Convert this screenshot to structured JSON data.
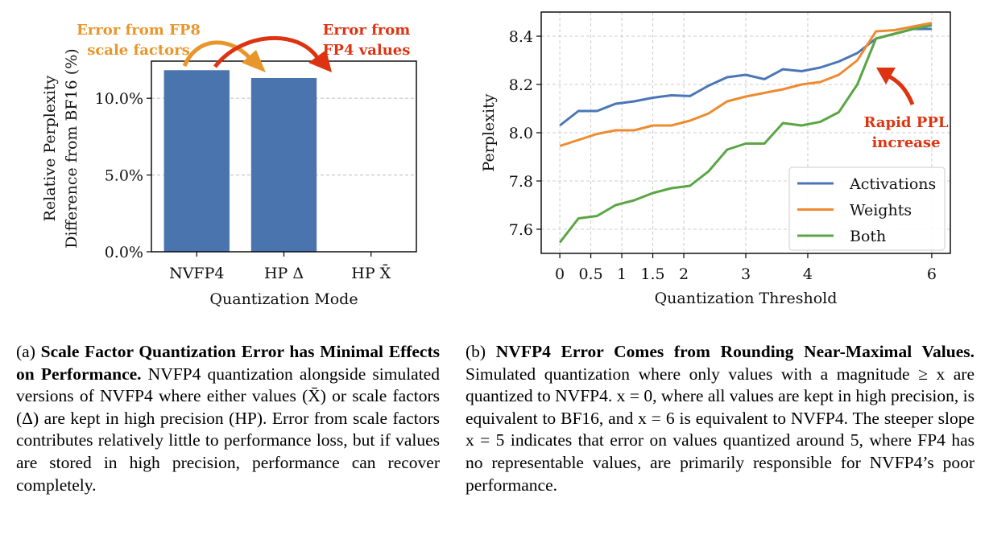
{
  "chart_data": [
    {
      "type": "bar",
      "categories": [
        "NVFP4",
        "HP Δ",
        "HP X̄"
      ],
      "values": [
        11.83,
        11.32,
        0.0
      ],
      "xlabel": "Quantization Mode",
      "ylabel": [
        "Relative Perplexity",
        "Difference from BF16 (%)"
      ],
      "ylim": [
        0,
        12.42
      ],
      "yticks": [
        0,
        5,
        10
      ],
      "ytick_labels": [
        "0.0%",
        "5.0%",
        "10.0%"
      ],
      "grid": "y-dashed",
      "bar_color": "#4a74ad",
      "annotations": [
        {
          "text": [
            "Error from FP8",
            "scale factors"
          ],
          "color": "#e8962a"
        },
        {
          "text": [
            "Error from",
            "FP4 values"
          ],
          "color": "#dd3311"
        }
      ]
    },
    {
      "type": "line",
      "x": [
        0,
        0.3,
        0.6,
        0.9,
        1.2,
        1.5,
        1.8,
        2.1,
        2.4,
        2.7,
        3.0,
        3.3,
        3.6,
        3.9,
        4.2,
        4.5,
        4.8,
        5.1,
        5.4,
        5.7,
        6.0
      ],
      "series": [
        {
          "name": "Activations",
          "color": "#4a76b8",
          "values": [
            8.03,
            8.09,
            8.09,
            8.12,
            8.13,
            8.145,
            8.155,
            8.152,
            8.195,
            8.23,
            8.24,
            8.222,
            8.263,
            8.255,
            8.27,
            8.295,
            8.33,
            8.39,
            8.41,
            8.43,
            8.43
          ]
        },
        {
          "name": "Weights",
          "color": "#ee8a30",
          "values": [
            7.945,
            7.97,
            7.995,
            8.01,
            8.01,
            8.03,
            8.03,
            8.05,
            8.08,
            8.13,
            8.15,
            8.165,
            8.18,
            8.2,
            8.21,
            8.24,
            8.3,
            8.42,
            8.425,
            8.44,
            8.455
          ]
        },
        {
          "name": "Both",
          "color": "#5aa544",
          "values": [
            7.545,
            7.645,
            7.655,
            7.7,
            7.72,
            7.75,
            7.77,
            7.78,
            7.84,
            7.93,
            7.955,
            7.955,
            8.04,
            8.03,
            8.045,
            8.085,
            8.2,
            8.39,
            8.41,
            8.43,
            8.445
          ]
        }
      ],
      "xlabel": "Quantization Threshold",
      "ylabel": "Perplexity",
      "xlim": [
        -0.3,
        6.3
      ],
      "ylim": [
        7.5,
        8.5
      ],
      "xticks": [
        0,
        0.5,
        1,
        1.5,
        2,
        3,
        4,
        6
      ],
      "xtick_labels": [
        "0",
        "0.5",
        "1",
        "1.5",
        "2",
        "3",
        "4",
        "6"
      ],
      "yticks": [
        7.6,
        7.8,
        8.0,
        8.2,
        8.4
      ],
      "ytick_labels": [
        "7.6",
        "7.8",
        "8.0",
        "8.2",
        "8.4"
      ],
      "grid": "both-dashed",
      "legend": "lower-right",
      "annotation": {
        "text": [
          "Rapid PPL",
          "increase"
        ],
        "color": "#dd3311",
        "points_to_x": 5.1
      }
    }
  ],
  "captions": {
    "a": {
      "label": "(a)",
      "title": "Scale Factor Quantization Error has Minimal Effects on Performance.",
      "body": "NVFP4 quantization alongside simulated versions of NVFP4 where either values (X̄) or scale factors (Δ) are kept in high precision (HP). Error from scale factors contributes relatively little to performance loss, but if values are stored in high precision, performance can recover completely."
    },
    "b": {
      "label": "(b)",
      "title": "NVFP4 Error Comes from Rounding Near-Maximal Values.",
      "body": "Simulated quantization where only values with a magnitude ≥ x are quantized to NVFP4. x = 0, where all values are kept in high precision, is equivalent to BF16, and x = 6 is equivalent to NVFP4. The steeper slope x = 5 indicates that error on values quantized around 5, where FP4 has no representable values, are primarily responsible for NVFP4’s poor performance."
    }
  }
}
